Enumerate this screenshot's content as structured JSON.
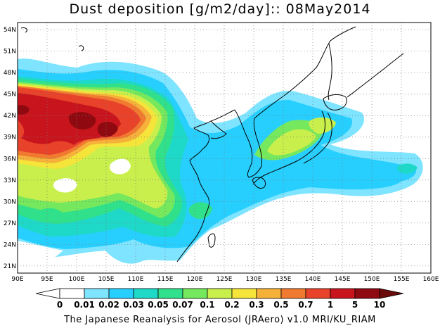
{
  "title": "Dust deposition [g/m2/day]:: 08May2014",
  "footer": "The Japanese Reanalysis for Aerosol (JRAero) v1.0 MRI/KU_RIAM",
  "map": {
    "lon_range": [
      90,
      160
    ],
    "lat_range": [
      20,
      55
    ],
    "lon_ticks": [
      "90E",
      "95E",
      "100E",
      "105E",
      "110E",
      "115E",
      "120E",
      "125E",
      "130E",
      "135E",
      "140E",
      "145E",
      "150E",
      "155E",
      "160E"
    ],
    "lat_ticks": [
      "21N",
      "24N",
      "27N",
      "30N",
      "33N",
      "36N",
      "39N",
      "42N",
      "45N",
      "48N",
      "51N",
      "54N"
    ]
  },
  "colorbar": {
    "labels": [
      "0",
      "0.01",
      "0.02",
      "0.03",
      "0.05",
      "0.07",
      "0.1",
      "0.2",
      "0.3",
      "0.5",
      "0.7",
      "1",
      "5",
      "10"
    ],
    "colors": [
      "#ffffff",
      "#7fe4ff",
      "#27cfff",
      "#1ed9c7",
      "#31e08b",
      "#75e85e",
      "#c9ef4c",
      "#f5e43a",
      "#f6b13a",
      "#f07a30",
      "#e8422a",
      "#c8141c",
      "#8f0a10"
    ],
    "under_color": "#ffffff",
    "over_color": "#6b0a0a"
  }
}
